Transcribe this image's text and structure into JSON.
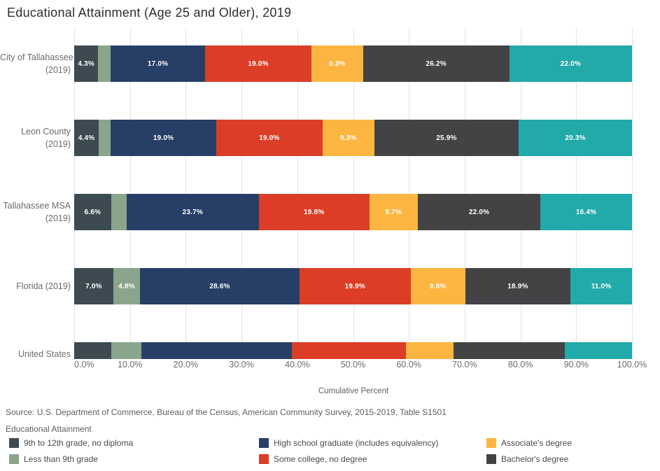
{
  "title": "Educational Attainment (Age 25 and Older), 2019",
  "source": "Source: U.S. Department of Commerce, Bureau of the Census, American Community Survey, 2015-2019, Table S1501",
  "legend": {
    "title": "Educational Attainment",
    "items": [
      {
        "label": "9th to 12th grade, no diploma",
        "color": "#3E4A52"
      },
      {
        "label": "Less than 9th grade",
        "color": "#8AA58B"
      },
      {
        "label": "High school graduate (includes equivalency)",
        "color": "#273F66"
      },
      {
        "label": "Some college, no degree",
        "color": "#DC3D27"
      },
      {
        "label": "Associate's degree",
        "color": "#FBB540"
      },
      {
        "label": "Bachelor's degree",
        "color": "#434346"
      }
    ]
  },
  "chart_data": {
    "type": "bar",
    "orientation": "horizontal",
    "stacked": true,
    "title": "Educational Attainment (Age 25 and Older), 2019",
    "xlabel": "Cumulative Percent",
    "xlim": [
      0,
      100
    ],
    "x_ticks": [
      "0.0%",
      "10.0%",
      "20.0%",
      "30.0%",
      "40.0%",
      "50.0%",
      "60.0%",
      "70.0%",
      "80.0%",
      "90.0%",
      "100.0%"
    ],
    "grid": true,
    "legend_position": "bottom-left",
    "series": [
      {
        "name": "9th to 12th grade, no diploma",
        "color": "#3E4A52"
      },
      {
        "name": "Less than 9th grade",
        "color": "#8AA58B"
      },
      {
        "name": "High school graduate (includes equivalency)",
        "color": "#273F66"
      },
      {
        "name": "Some college, no degree",
        "color": "#DC3D27"
      },
      {
        "name": "Associate's degree",
        "color": "#FBB540"
      },
      {
        "name": "Bachelor's degree",
        "color": "#434346"
      },
      {
        "name": "",
        "color": "#21AAA9"
      }
    ],
    "rows": [
      {
        "label_lines": [
          "City of Tallahassee",
          "(2019)"
        ],
        "values": [
          4.3,
          2.2,
          17.0,
          19.0,
          9.3,
          26.2,
          22.0
        ],
        "value_labels": [
          "4.3%",
          "",
          "17.0%",
          "19.0%",
          "9.3%",
          "26.2%",
          "22.0%"
        ]
      },
      {
        "label_lines": [
          "Leon County",
          "(2019)"
        ],
        "values": [
          4.4,
          2.1,
          19.0,
          19.0,
          9.3,
          25.9,
          20.3
        ],
        "value_labels": [
          "4.4%",
          "",
          "19.0%",
          "19.0%",
          "9.3%",
          "25.9%",
          "20.3%"
        ]
      },
      {
        "label_lines": [
          "Tallahassee MSA",
          "(2019)"
        ],
        "values": [
          6.6,
          2.8,
          23.7,
          19.8,
          8.7,
          22.0,
          16.4
        ],
        "value_labels": [
          "6.6%",
          "",
          "23.7%",
          "19.8%",
          "8.7%",
          "22.0%",
          "16.4%"
        ]
      },
      {
        "label_lines": [
          "Florida (2019)"
        ],
        "values": [
          7.0,
          4.8,
          28.6,
          19.9,
          9.8,
          18.9,
          11.0
        ],
        "value_labels": [
          "7.0%",
          "4.8%",
          "28.6%",
          "19.9%",
          "9.8%",
          "18.9%",
          "11.0%"
        ]
      },
      {
        "label_lines": [
          "United States",
          ""
        ],
        "values": [
          6.7,
          5.3,
          27.0,
          20.5,
          8.5,
          20.0,
          12.0
        ],
        "value_labels": [
          "",
          "",
          "",
          "",
          "",
          "",
          ""
        ],
        "clipped": true
      }
    ]
  }
}
